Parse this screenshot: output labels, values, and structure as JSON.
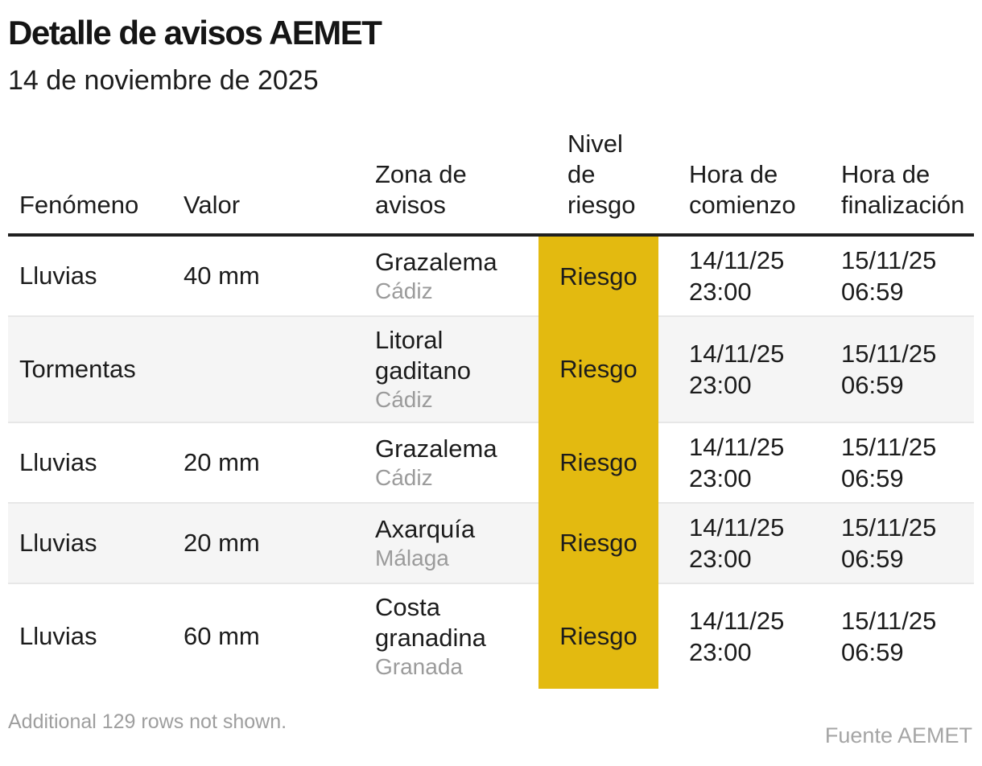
{
  "title": "Detalle de avisos AEMET",
  "subtitle": "14 de noviembre de 2025",
  "chart_data": {
    "type": "table",
    "columns": [
      "Fenómeno",
      "Valor",
      "Zona de avisos",
      "Nivel de riesgo",
      "Hora de comienzo",
      "Hora de finalización"
    ],
    "rows": [
      {
        "fenomeno": "Lluvias",
        "valor": "40 mm",
        "zona": "Grazalema",
        "provincia": "Cádiz",
        "nivel": "Riesgo",
        "comienzo_fecha": "14/11/25",
        "comienzo_hora": "23:00",
        "fin_fecha": "15/11/25",
        "fin_hora": "06:59"
      },
      {
        "fenomeno": "Tormentas",
        "valor": "",
        "zona": "Litoral gaditano",
        "provincia": "Cádiz",
        "nivel": "Riesgo",
        "comienzo_fecha": "14/11/25",
        "comienzo_hora": "23:00",
        "fin_fecha": "15/11/25",
        "fin_hora": "06:59"
      },
      {
        "fenomeno": "Lluvias",
        "valor": "20 mm",
        "zona": "Grazalema",
        "provincia": "Cádiz",
        "nivel": "Riesgo",
        "comienzo_fecha": "14/11/25",
        "comienzo_hora": "23:00",
        "fin_fecha": "15/11/25",
        "fin_hora": "06:59"
      },
      {
        "fenomeno": "Lluvias",
        "valor": "20 mm",
        "zona": "Axarquía",
        "provincia": "Málaga",
        "nivel": "Riesgo",
        "comienzo_fecha": "14/11/25",
        "comienzo_hora": "23:00",
        "fin_fecha": "15/11/25",
        "fin_hora": "06:59"
      },
      {
        "fenomeno": "Lluvias",
        "valor": "60 mm",
        "zona": "Costa granadina",
        "provincia": "Granada",
        "nivel": "Riesgo",
        "comienzo_fecha": "14/11/25",
        "comienzo_hora": "23:00",
        "fin_fecha": "15/11/25",
        "fin_hora": "06:59"
      }
    ],
    "legend_note": "Riesgo level cells highlighted in yellow"
  },
  "footer": {
    "note": "Additional 129 rows not shown.",
    "source": "Fuente AEMET"
  },
  "colors": {
    "risk_yellow": "#e3ba10",
    "row_stripe": "#f5f5f5",
    "separator": "#e7e7e7",
    "header_rule": "#1f1f1f",
    "secondary_text": "#9b9b9b"
  }
}
